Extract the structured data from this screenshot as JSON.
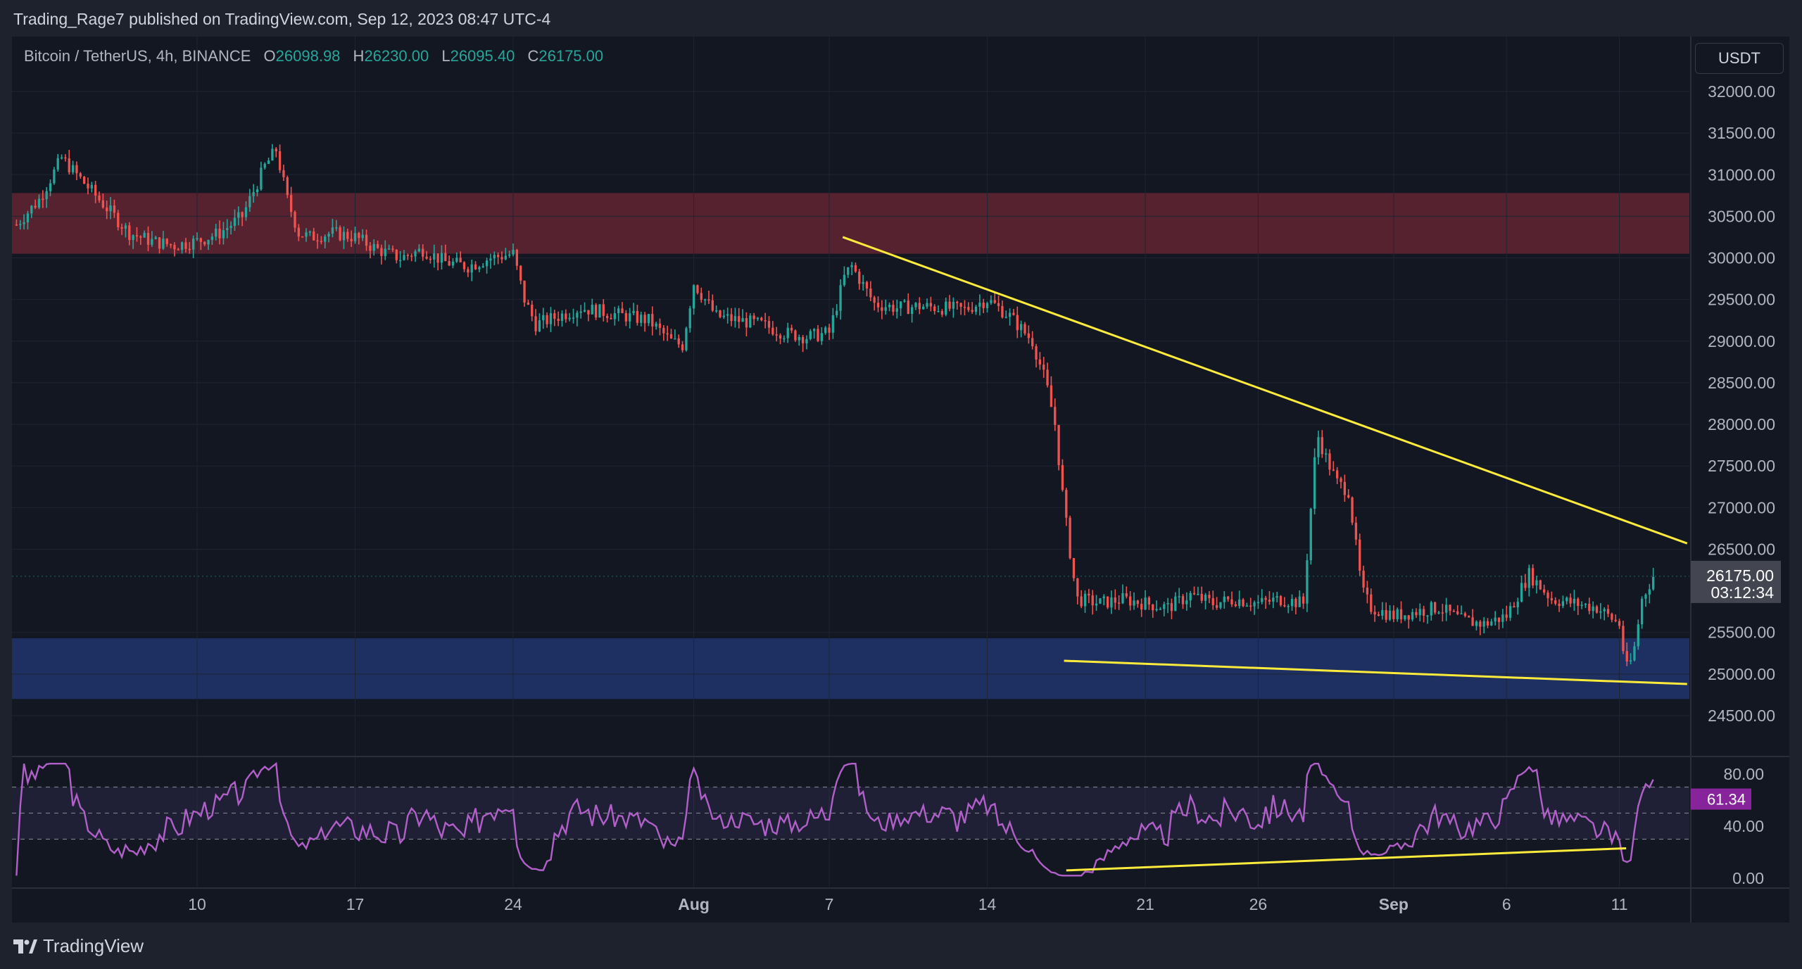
{
  "published": "Trading_Rage7 published on TradingView.com, Sep 12, 2023 08:47 UTC-4",
  "brand": "TradingView",
  "legend": {
    "symbol": "Bitcoin / TetherUS, 4h, BINANCE",
    "o_label": "O",
    "o_value": "26098.98",
    "h_label": "H",
    "h_value": "26230.00",
    "l_label": "L",
    "l_value": "26095.40",
    "c_label": "C",
    "c_value": "26175.00"
  },
  "currency_button": "USDT",
  "price_tag": {
    "price": "26175.00",
    "countdown": "03:12:34"
  },
  "rsi_tag": "61.34",
  "colors": {
    "up": "#26a69a",
    "down": "#ef5350",
    "trendline": "#ffeb3b",
    "resistance_zone": "#5a2330",
    "support_zone": "#1f3266",
    "rsi": "#b160c9"
  },
  "chart_data": {
    "type": "candlestick",
    "timeframe": "4h",
    "price_axis": {
      "ticks": [
        "32000.00",
        "31500.00",
        "31000.00",
        "30500.00",
        "30000.00",
        "29500.00",
        "29000.00",
        "28500.00",
        "28000.00",
        "27500.00",
        "27000.00",
        "26500.00",
        "25500.00",
        "25000.00",
        "24500.00"
      ],
      "range": [
        24300,
        32200
      ]
    },
    "time_axis": {
      "labels": [
        {
          "text": "10",
          "day": 10
        },
        {
          "text": "17",
          "day": 17
        },
        {
          "text": "24",
          "day": 24
        },
        {
          "text": "Aug",
          "day": 32
        },
        {
          "text": "7",
          "day": 38
        },
        {
          "text": "14",
          "day": 45
        },
        {
          "text": "21",
          "day": 52
        },
        {
          "text": "26",
          "day": 57
        },
        {
          "text": "Sep",
          "day": 63
        },
        {
          "text": "6",
          "day": 68
        },
        {
          "text": "11",
          "day": 73
        }
      ],
      "range_days": [
        1.8,
        76.1
      ]
    },
    "price_path": [
      [
        2,
        30400
      ],
      [
        3,
        30700
      ],
      [
        4,
        31200
      ],
      [
        5,
        30900
      ],
      [
        6,
        30600
      ],
      [
        7,
        30300
      ],
      [
        8,
        30200
      ],
      [
        9,
        30150
      ],
      [
        10,
        30200
      ],
      [
        11,
        30300
      ],
      [
        12,
        30500
      ],
      [
        13,
        31100
      ],
      [
        13.5,
        31300
      ],
      [
        14,
        30700
      ],
      [
        14.5,
        30300
      ],
      [
        15,
        30250
      ],
      [
        16,
        30300
      ],
      [
        17,
        30250
      ],
      [
        18,
        30100
      ],
      [
        19,
        30000
      ],
      [
        20,
        30100
      ],
      [
        21,
        29950
      ],
      [
        22,
        29900
      ],
      [
        23,
        30000
      ],
      [
        24,
        30050
      ],
      [
        24.5,
        29500
      ],
      [
        25,
        29200
      ],
      [
        26,
        29300
      ],
      [
        27,
        29400
      ],
      [
        28,
        29350
      ],
      [
        29,
        29300
      ],
      [
        30,
        29250
      ],
      [
        31,
        29000
      ],
      [
        31.5,
        28950
      ],
      [
        32,
        29700
      ],
      [
        32.5,
        29500
      ],
      [
        33,
        29300
      ],
      [
        34,
        29250
      ],
      [
        35,
        29200
      ],
      [
        36,
        29100
      ],
      [
        37,
        29050
      ],
      [
        38,
        29100
      ],
      [
        38.7,
        29800
      ],
      [
        39,
        29900
      ],
      [
        40,
        29450
      ],
      [
        41,
        29400
      ],
      [
        42,
        29420
      ],
      [
        43,
        29400
      ],
      [
        44,
        29380
      ],
      [
        45,
        29500
      ],
      [
        46,
        29300
      ],
      [
        47,
        29000
      ],
      [
        47.6,
        28500
      ],
      [
        48,
        28000
      ],
      [
        48.4,
        27000
      ],
      [
        48.8,
        26200
      ],
      [
        49,
        25900
      ],
      [
        50,
        25850
      ],
      [
        51,
        25900
      ],
      [
        52,
        25850
      ],
      [
        53,
        25800
      ],
      [
        54,
        25950
      ],
      [
        55,
        25850
      ],
      [
        56,
        25900
      ],
      [
        57,
        25850
      ],
      [
        58,
        25900
      ],
      [
        59,
        25850
      ],
      [
        59.6,
        27900
      ],
      [
        60,
        27600
      ],
      [
        60.5,
        27300
      ],
      [
        61,
        27200
      ],
      [
        61.6,
        26000
      ],
      [
        62,
        25800
      ],
      [
        63,
        25700
      ],
      [
        64,
        25750
      ],
      [
        65,
        25800
      ],
      [
        66,
        25650
      ],
      [
        67,
        25600
      ],
      [
        68,
        25700
      ],
      [
        69,
        26200
      ],
      [
        70,
        25900
      ],
      [
        71,
        25850
      ],
      [
        72,
        25800
      ],
      [
        73,
        25600
      ],
      [
        73.3,
        25050
      ],
      [
        73.6,
        25200
      ],
      [
        74,
        25900
      ],
      [
        74.5,
        26175
      ]
    ],
    "zones": [
      {
        "name": "Resistance zone",
        "from": 30050,
        "to": 30780
      },
      {
        "name": "Support zone",
        "from": 24700,
        "to": 25430
      }
    ],
    "trendlines": [
      {
        "from": {
          "day": 38.6,
          "price": 30250
        },
        "to": {
          "day": 76,
          "price": 26570
        }
      },
      {
        "from": {
          "day": 48.4,
          "price": 25160
        },
        "to": {
          "day": 76,
          "price": 24880
        }
      }
    ],
    "last_price": 26175.0,
    "rsi": {
      "ticks": [
        "80.00",
        "40.00",
        "0.00"
      ],
      "range": [
        -5,
        93
      ],
      "bands": [
        70,
        30
      ],
      "midline": 50,
      "last": 61.34,
      "divergence_line": {
        "from": {
          "day": 48.5,
          "value": 6
        },
        "to": {
          "day": 73.3,
          "value": 23
        }
      }
    }
  }
}
